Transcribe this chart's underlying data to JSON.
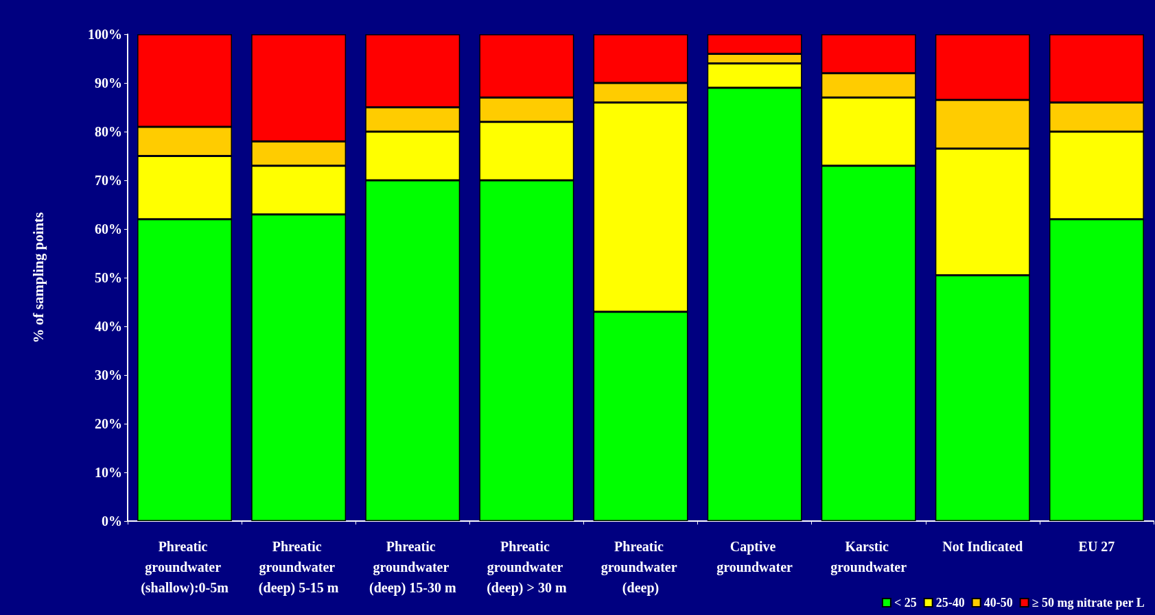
{
  "chart_data": {
    "type": "bar",
    "stacked": true,
    "ylabel": "% of sampling points",
    "categories": [
      "Phreatic groundwater (shallow):0-5m",
      "Phreatic groundwater (deep) 5-15 m",
      "Phreatic groundwater (deep) 15-30 m",
      "Phreatic groundwater (deep) > 30 m",
      "Phreatic groundwater (deep)",
      "Captive groundwater",
      "Karstic groundwater",
      "Not Indicated",
      "EU 27"
    ],
    "series": [
      {
        "name": "< 25",
        "color": "#00ff00",
        "values": [
          62,
          63,
          70,
          70,
          43,
          89,
          73,
          50.5,
          62
        ]
      },
      {
        "name": "25-40",
        "color": "#ffff00",
        "values": [
          13,
          10,
          10,
          12,
          43,
          5,
          14,
          26,
          18
        ]
      },
      {
        "name": "40-50",
        "color": "#ffcc00",
        "values": [
          6,
          5,
          5,
          5,
          4,
          2,
          5,
          10,
          6
        ]
      },
      {
        "name": "≥ 50 mg nitrate per L",
        "color": "#ff0000",
        "values": [
          19,
          22,
          15,
          13,
          10,
          4,
          8,
          13.5,
          14
        ]
      }
    ],
    "ylim": [
      0,
      100
    ],
    "yticks": [
      {
        "value": 0,
        "label": "0%"
      },
      {
        "value": 10,
        "label": "10%"
      },
      {
        "value": 20,
        "label": "20%"
      },
      {
        "value": 30,
        "label": "30%"
      },
      {
        "value": 40,
        "label": "40%"
      },
      {
        "value": 50,
        "label": "50%"
      },
      {
        "value": 60,
        "label": "60%"
      },
      {
        "value": 70,
        "label": "70%"
      },
      {
        "value": 80,
        "label": "80%"
      },
      {
        "value": 90,
        "label": "90%"
      },
      {
        "value": 100,
        "label": "100%"
      }
    ],
    "grid": false,
    "legend": "bottom right"
  }
}
